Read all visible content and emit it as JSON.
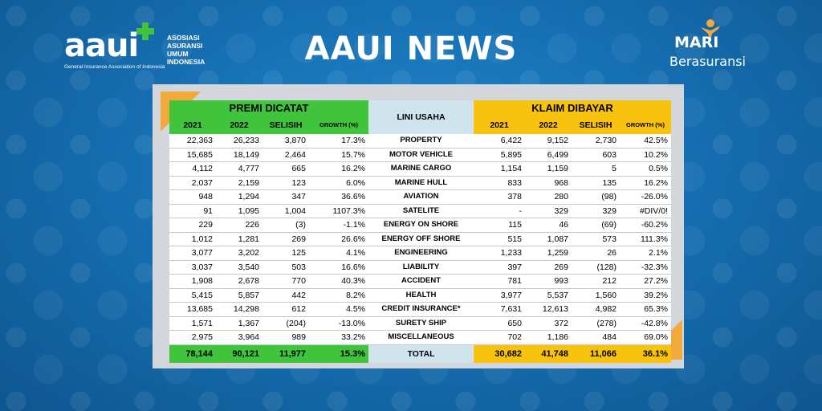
{
  "header": {
    "logo_left_main": "aaui",
    "logo_left_lines": [
      "ASOSIASI",
      "ASURANSI",
      "UMUM",
      "INDONESIA"
    ],
    "logo_left_sub": "General Insurance Association of Indonesia",
    "title": "AAUI NEWS",
    "logo_right_top": "MARI",
    "logo_right_bottom": "Berasuransi"
  },
  "colors": {
    "premi": "#3fc43b",
    "klaim": "#f9c20d",
    "lini": "#cfe4ec",
    "accent": "#f2a93b"
  },
  "table": {
    "premi_title": "PREMI DICATAT",
    "klaim_title": "KLAIM DIBAYAR",
    "lini_title": "LINI USAHA",
    "columns": [
      "2021",
      "2022",
      "SELISIH",
      "GROWTH (%)"
    ],
    "rows": [
      {
        "lini": "PROPERTY",
        "premi": [
          "22,363",
          "26,233",
          "3,870",
          "17.3%"
        ],
        "klaim": [
          "6,422",
          "9,152",
          "2,730",
          "42.5%"
        ]
      },
      {
        "lini": "MOTOR VEHICLE",
        "premi": [
          "15,685",
          "18,149",
          "2,464",
          "15.7%"
        ],
        "klaim": [
          "5,895",
          "6,499",
          "603",
          "10.2%"
        ]
      },
      {
        "lini": "MARINE CARGO",
        "premi": [
          "4,112",
          "4,777",
          "665",
          "16.2%"
        ],
        "klaim": [
          "1,154",
          "1,159",
          "5",
          "0.5%"
        ]
      },
      {
        "lini": "MARINE HULL",
        "premi": [
          "2,037",
          "2,159",
          "123",
          "6.0%"
        ],
        "klaim": [
          "833",
          "968",
          "135",
          "16.2%"
        ]
      },
      {
        "lini": "AVIATION",
        "premi": [
          "948",
          "1,294",
          "347",
          "36.6%"
        ],
        "klaim": [
          "378",
          "280",
          "(98)",
          "-26.0%"
        ]
      },
      {
        "lini": "SATELITE",
        "premi": [
          "91",
          "1,095",
          "1,004",
          "1107.3%"
        ],
        "klaim": [
          "-",
          "329",
          "329",
          "#DIV/0!"
        ]
      },
      {
        "lini": "ENERGY ON SHORE",
        "premi": [
          "229",
          "226",
          "(3)",
          "-1.1%"
        ],
        "klaim": [
          "115",
          "46",
          "(69)",
          "-60.2%"
        ]
      },
      {
        "lini": "ENERGY OFF SHORE",
        "premi": [
          "1,012",
          "1,281",
          "269",
          "26.6%"
        ],
        "klaim": [
          "515",
          "1,087",
          "573",
          "111.3%"
        ]
      },
      {
        "lini": "ENGINEERING",
        "premi": [
          "3,077",
          "3,202",
          "125",
          "4.1%"
        ],
        "klaim": [
          "1,233",
          "1,259",
          "26",
          "2.1%"
        ]
      },
      {
        "lini": "LIABILITY",
        "premi": [
          "3,037",
          "3,540",
          "503",
          "16.6%"
        ],
        "klaim": [
          "397",
          "269",
          "(128)",
          "-32.3%"
        ]
      },
      {
        "lini": "ACCIDENT",
        "premi": [
          "1,908",
          "2,678",
          "770",
          "40.3%"
        ],
        "klaim": [
          "781",
          "993",
          "212",
          "27.2%"
        ]
      },
      {
        "lini": "HEALTH",
        "premi": [
          "5,415",
          "5,857",
          "442",
          "8.2%"
        ],
        "klaim": [
          "3,977",
          "5,537",
          "1,560",
          "39.2%"
        ]
      },
      {
        "lini": "CREDIT INSURANCE*",
        "premi": [
          "13,685",
          "14,298",
          "612",
          "4.5%"
        ],
        "klaim": [
          "7,631",
          "12,613",
          "4,982",
          "65.3%"
        ]
      },
      {
        "lini": "SURETY SHIP",
        "premi": [
          "1,571",
          "1,367",
          "(204)",
          "-13.0%"
        ],
        "klaim": [
          "650",
          "372",
          "(278)",
          "-42.8%"
        ]
      },
      {
        "lini": "MISCELLANEOUS",
        "premi": [
          "2,975",
          "3,964",
          "989",
          "33.2%"
        ],
        "klaim": [
          "702",
          "1,186",
          "484",
          "69.0%"
        ]
      }
    ],
    "total": {
      "lini": "TOTAL",
      "premi": [
        "78,144",
        "90,121",
        "11,977",
        "15.3%"
      ],
      "klaim": [
        "30,682",
        "41,748",
        "11,066",
        "36.1%"
      ]
    }
  }
}
